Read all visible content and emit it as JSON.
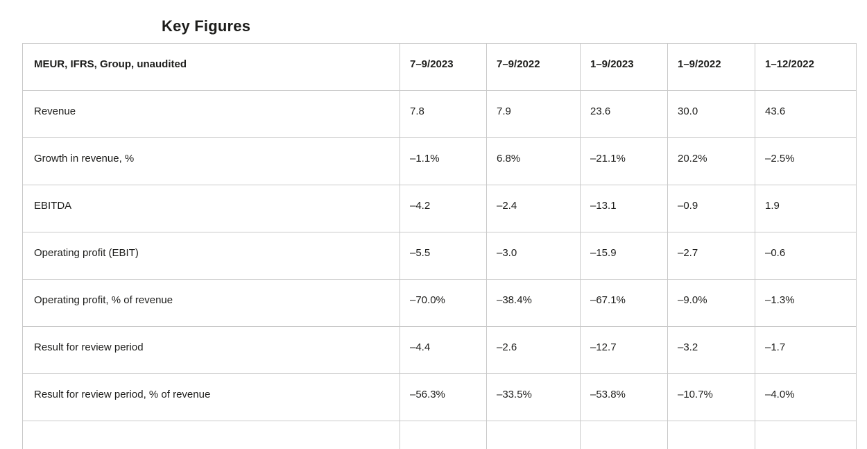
{
  "page": {
    "title": "Key Figures"
  },
  "table": {
    "header_label": "MEUR, IFRS, Group, unaudited",
    "columns": [
      "7–9/2023",
      "7–9/2022",
      "1–9/2023",
      "1–9/2022",
      "1–12/2022"
    ],
    "rows": [
      {
        "label": "Revenue",
        "values": [
          "7.8",
          "7.9",
          "23.6",
          "30.0",
          "43.6"
        ]
      },
      {
        "label": "Growth in revenue, %",
        "values": [
          "–1.1%",
          "6.8%",
          "–21.1%",
          "20.2%",
          "–2.5%"
        ]
      },
      {
        "label": "EBITDA",
        "values": [
          "–4.2",
          "–2.4",
          "–13.1",
          "–0.9",
          "1.9"
        ]
      },
      {
        "label": "Operating profit (EBIT)",
        "values": [
          "–5.5",
          "–3.0",
          "–15.9",
          "–2.7",
          "–0.6"
        ]
      },
      {
        "label": "Operating profit, % of revenue",
        "values": [
          "–70.0%",
          "–38.4%",
          "–67.1%",
          "–9.0%",
          "–1.3%"
        ]
      },
      {
        "label": "Result for review period",
        "values": [
          "–4.4",
          "–2.6",
          "–12.7",
          "–3.2",
          "–1.7"
        ]
      },
      {
        "label": "Result for review period, % of revenue",
        "values": [
          "–56.3%",
          "–33.5%",
          "–53.8%",
          "–10.7%",
          "–4.0%"
        ]
      }
    ],
    "colors": {
      "border": "#c9c9c9",
      "text": "#1d1d1b",
      "background": "#ffffff"
    }
  }
}
